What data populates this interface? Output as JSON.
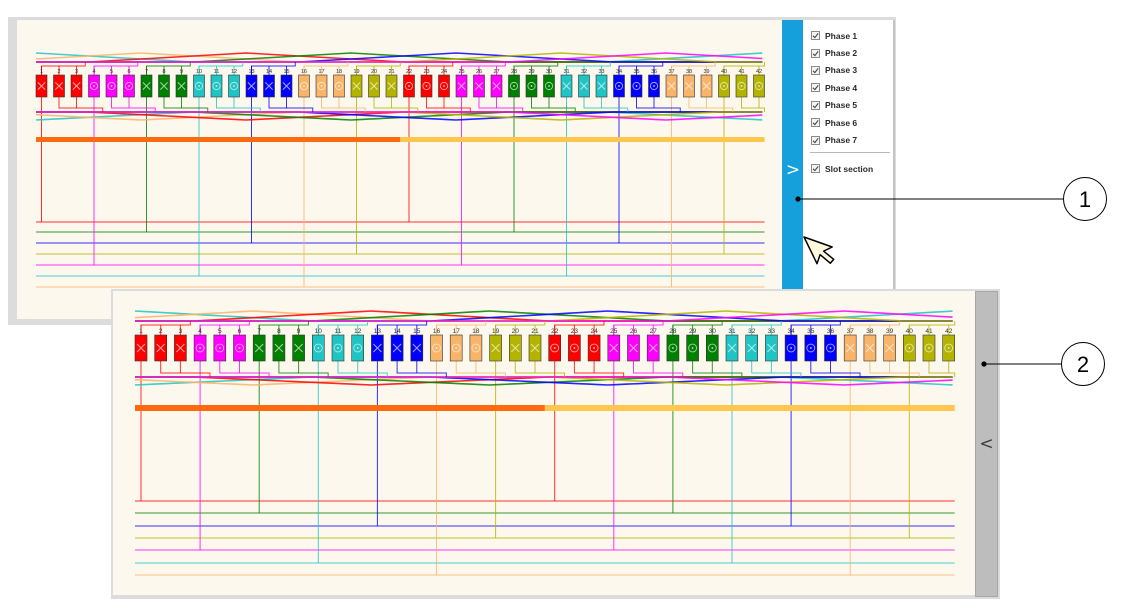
{
  "group_colors": [
    "#ff0000",
    "#ff00ff",
    "#008000",
    "#1fc4c4",
    "#0000ff",
    "#f8b468",
    "#b4b400"
  ],
  "slots": [
    {
      "num": "1",
      "group": 0,
      "symbol": "cross"
    },
    {
      "num": "2",
      "group": 0,
      "symbol": "cross"
    },
    {
      "num": "3",
      "group": 0,
      "symbol": "cross"
    },
    {
      "num": "4",
      "group": 1,
      "symbol": "dot"
    },
    {
      "num": "5",
      "group": 1,
      "symbol": "dot"
    },
    {
      "num": "6",
      "group": 1,
      "symbol": "dot"
    },
    {
      "num": "7",
      "group": 2,
      "symbol": "cross"
    },
    {
      "num": "8",
      "group": 2,
      "symbol": "cross"
    },
    {
      "num": "9",
      "group": 2,
      "symbol": "cross"
    },
    {
      "num": "10",
      "group": 3,
      "symbol": "dot"
    },
    {
      "num": "11",
      "group": 3,
      "symbol": "dot"
    },
    {
      "num": "12",
      "group": 3,
      "symbol": "dot"
    },
    {
      "num": "13",
      "group": 4,
      "symbol": "cross"
    },
    {
      "num": "14",
      "group": 4,
      "symbol": "cross"
    },
    {
      "num": "15",
      "group": 4,
      "symbol": "cross"
    },
    {
      "num": "16",
      "group": 5,
      "symbol": "dot"
    },
    {
      "num": "17",
      "group": 5,
      "symbol": "dot"
    },
    {
      "num": "18",
      "group": 5,
      "symbol": "dot"
    },
    {
      "num": "19",
      "group": 6,
      "symbol": "cross"
    },
    {
      "num": "20",
      "group": 6,
      "symbol": "cross"
    },
    {
      "num": "21",
      "group": 6,
      "symbol": "cross"
    },
    {
      "num": "22",
      "group": 0,
      "symbol": "dot"
    },
    {
      "num": "23",
      "group": 0,
      "symbol": "dot"
    },
    {
      "num": "24",
      "group": 0,
      "symbol": "dot"
    },
    {
      "num": "25",
      "group": 1,
      "symbol": "cross"
    },
    {
      "num": "26",
      "group": 1,
      "symbol": "cross"
    },
    {
      "num": "27",
      "group": 1,
      "symbol": "cross"
    },
    {
      "num": "28",
      "group": 2,
      "symbol": "dot"
    },
    {
      "num": "29",
      "group": 2,
      "symbol": "dot"
    },
    {
      "num": "30",
      "group": 2,
      "symbol": "dot"
    },
    {
      "num": "31",
      "group": 3,
      "symbol": "cross"
    },
    {
      "num": "32",
      "group": 3,
      "symbol": "cross"
    },
    {
      "num": "33",
      "group": 3,
      "symbol": "cross"
    },
    {
      "num": "34",
      "group": 4,
      "symbol": "dot"
    },
    {
      "num": "35",
      "group": 4,
      "symbol": "dot"
    },
    {
      "num": "36",
      "group": 4,
      "symbol": "dot"
    },
    {
      "num": "37",
      "group": 5,
      "symbol": "cross"
    },
    {
      "num": "38",
      "group": 5,
      "symbol": "cross"
    },
    {
      "num": "39",
      "group": 5,
      "symbol": "cross"
    },
    {
      "num": "40",
      "group": 6,
      "symbol": "dot"
    },
    {
      "num": "41",
      "group": 6,
      "symbol": "dot"
    },
    {
      "num": "42",
      "group": 6,
      "symbol": "dot"
    }
  ],
  "section_bar": {
    "colors": [
      "#ff6a10",
      "#ffc64e"
    ]
  },
  "expanded_view": {
    "toggle_chevron": ">",
    "toggle_color": "#15a0dc",
    "options": {
      "phases": [
        {
          "label": "Phase 1",
          "checked": true
        },
        {
          "label": "Phase 2",
          "checked": true
        },
        {
          "label": "Phase 3",
          "checked": true
        },
        {
          "label": "Phase 4",
          "checked": true
        },
        {
          "label": "Phase 5",
          "checked": true
        },
        {
          "label": "Phase 6",
          "checked": true
        },
        {
          "label": "Phase 7",
          "checked": true
        }
      ],
      "slot_section": {
        "label": "Slot section",
        "checked": true
      }
    }
  },
  "collapsed_view": {
    "toggle_chevron": "<",
    "toggle_color": "#bdbdbd"
  },
  "callouts": [
    {
      "label": "1"
    },
    {
      "label": "2"
    }
  ]
}
